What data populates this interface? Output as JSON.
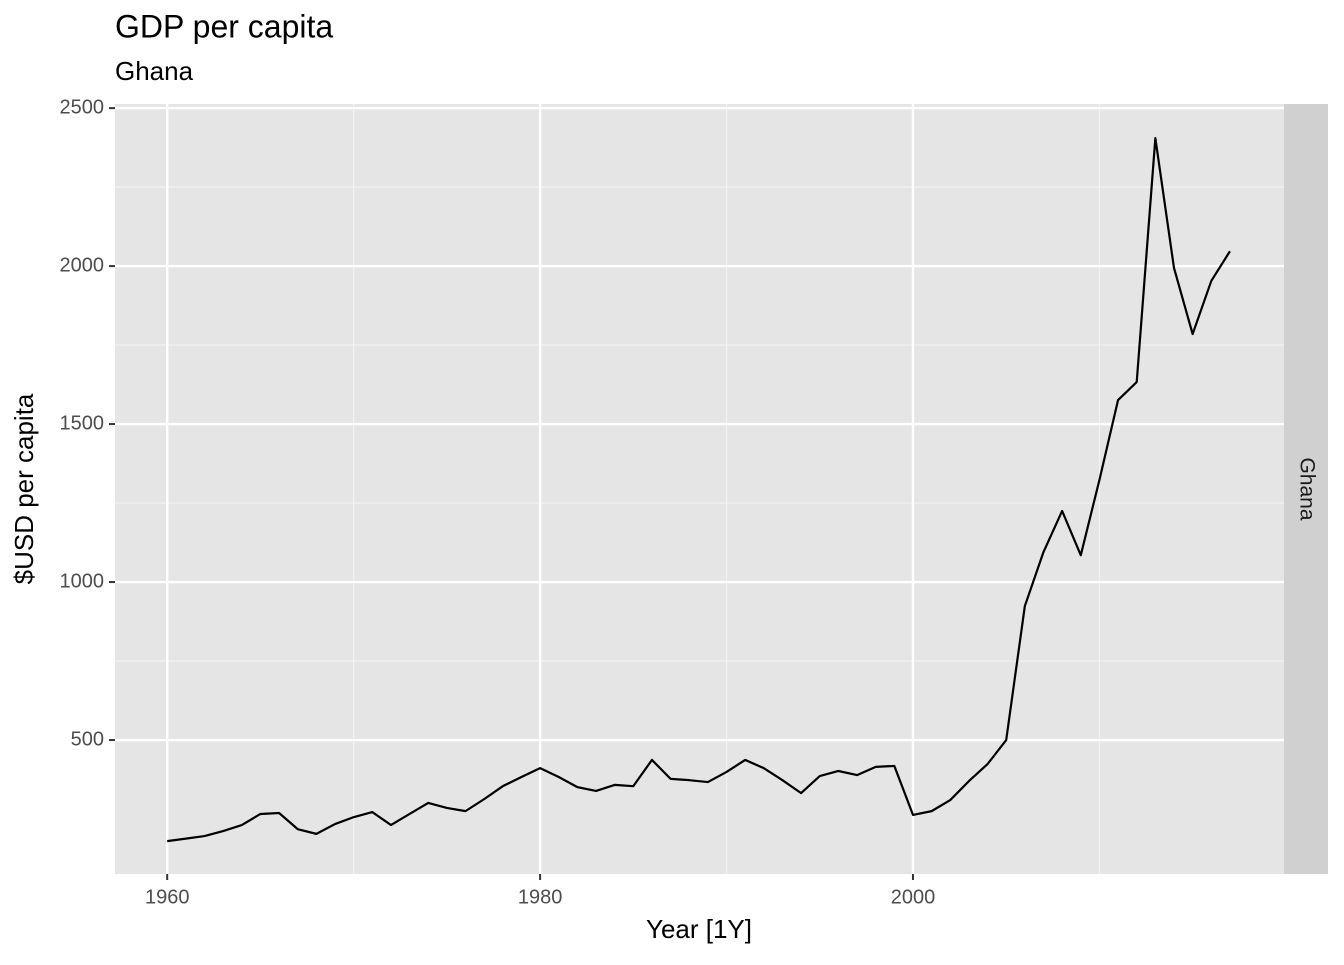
{
  "chart_data": {
    "type": "line",
    "title": "GDP per capita",
    "subtitle": "Ghana",
    "x_label": "Year [1Y]",
    "y_label": "$USD per capita",
    "facet_label": "Ghana",
    "x": [
      1960,
      1961,
      1962,
      1963,
      1964,
      1965,
      1966,
      1967,
      1968,
      1969,
      1970,
      1971,
      1972,
      1973,
      1974,
      1975,
      1976,
      1977,
      1978,
      1979,
      1980,
      1981,
      1982,
      1983,
      1984,
      1985,
      1986,
      1987,
      1988,
      1989,
      1990,
      1991,
      1992,
      1993,
      1994,
      1995,
      1996,
      1997,
      1998,
      1999,
      2000,
      2001,
      2002,
      2003,
      2004,
      2005,
      2006,
      2007,
      2008,
      2009,
      2010,
      2011,
      2012,
      2013,
      2014,
      2015,
      2016,
      2017
    ],
    "series": [
      {
        "color": "#000000",
        "values": [
          180,
          188,
          196,
          212,
          231,
          266,
          269,
          218,
          203,
          234,
          256,
          272,
          231,
          266,
          301,
          285,
          275,
          313,
          354,
          383,
          411,
          383,
          351,
          339,
          358,
          354,
          437,
          377,
          373,
          367,
          399,
          437,
          411,
          373,
          332,
          386,
          402,
          389,
          415,
          418,
          263,
          275,
          310,
          370,
          424,
          500,
          924,
          1095,
          1225,
          1085,
          1323,
          1576,
          1633,
          2405,
          1994,
          1785,
          1953,
          2047
        ]
      }
    ],
    "xlim": [
      1957.2,
      2019.9
    ],
    "ylim": [
      76,
      2513
    ],
    "xticks": [
      1960,
      1980,
      2000
    ],
    "yticks": [
      500,
      1000,
      1500,
      2000,
      2500
    ],
    "minor_xticks": [
      1970,
      1990,
      2010
    ],
    "minor_yticks": [
      750,
      1250,
      1750,
      2250
    ],
    "grid": true
  }
}
